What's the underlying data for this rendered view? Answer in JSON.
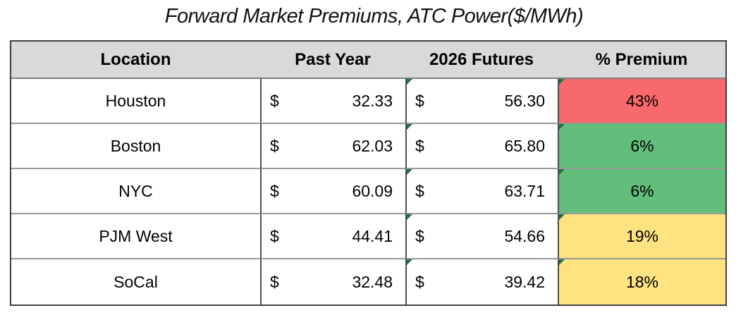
{
  "title": "Forward Market Premiums, ATC Power($/MWh)",
  "colors": {
    "header_bg": "#D9D9D9",
    "premium_red": "#F8696B",
    "premium_green": "#63BE7B",
    "premium_yellow": "#FFE380",
    "error_triangle_green": "#1F7145",
    "outer_border": "#404040",
    "row_divider": "#999999"
  },
  "table": {
    "headers": {
      "location": "Location",
      "past_year": "Past Year",
      "futures": "2026 Futures",
      "premium": "% Premium"
    },
    "rows": [
      {
        "location": "Houston",
        "currency": "$",
        "past_year": "32.33",
        "futures": "56.30",
        "premium": "43%",
        "premium_color": "#F8696B"
      },
      {
        "location": "Boston",
        "currency": "$",
        "past_year": "62.03",
        "futures": "65.80",
        "premium": "6%",
        "premium_color": "#63BE7B"
      },
      {
        "location": "NYC",
        "currency": "$",
        "past_year": "60.09",
        "futures": "63.71",
        "premium": "6%",
        "premium_color": "#63BE7B"
      },
      {
        "location": "PJM West",
        "currency": "$",
        "past_year": "44.41",
        "futures": "54.66",
        "premium": "19%",
        "premium_color": "#FFE380"
      },
      {
        "location": "SoCal",
        "currency": "$",
        "past_year": "32.48",
        "futures": "39.42",
        "premium": "18%",
        "premium_color": "#FFE380"
      }
    ]
  },
  "chart_data": {
    "type": "table",
    "title": "Forward Market Premiums, ATC Power($/MWh)",
    "columns": [
      "Location",
      "Past Year",
      "2026 Futures",
      "% Premium"
    ],
    "rows": [
      [
        "Houston",
        32.33,
        56.3,
        "43%"
      ],
      [
        "Boston",
        62.03,
        65.8,
        "6%"
      ],
      [
        "NYC",
        60.09,
        63.71,
        "6%"
      ],
      [
        "PJM West",
        44.41,
        54.66,
        "19%"
      ],
      [
        "SoCal",
        32.48,
        39.42,
        "18%"
      ]
    ],
    "notes": "Premium column conditionally colored: 43%=red, 6%=green, 19%/18%=yellow; units $/MWh"
  }
}
